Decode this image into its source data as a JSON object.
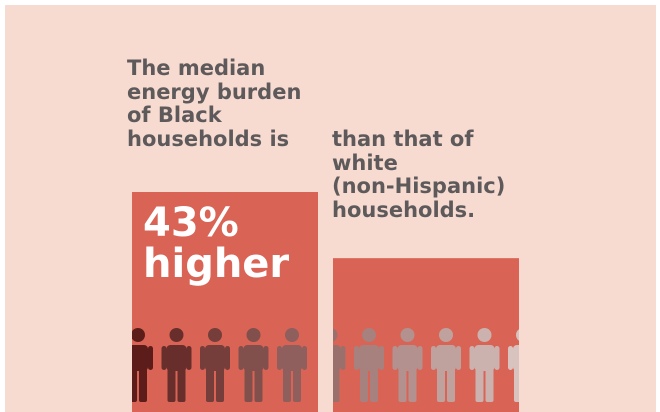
{
  "colors": {
    "background": "#f7dbd1",
    "bar": "#d96455",
    "caption_text": "#5e5a5b",
    "stat_text": "#ffffff",
    "figure_dark": "#5c1d1a",
    "figure_light": "#d8c3bf"
  },
  "caption_left": [
    "The median",
    "energy burden",
    "of Black",
    "households is"
  ],
  "caption_right": [
    "than that of",
    "white",
    "(non-Hispanic)",
    "households."
  ],
  "stat": {
    "value": "43%",
    "label": "higher"
  },
  "chart_data": {
    "type": "bar",
    "title": "",
    "categories": [
      "Black households",
      "White (non-Hispanic) households"
    ],
    "values": [
      1.43,
      1.0
    ],
    "ylim": [
      0,
      1.43
    ],
    "grid": false,
    "annotations": [
      "43%",
      "higher"
    ],
    "icons": "person-icon"
  }
}
